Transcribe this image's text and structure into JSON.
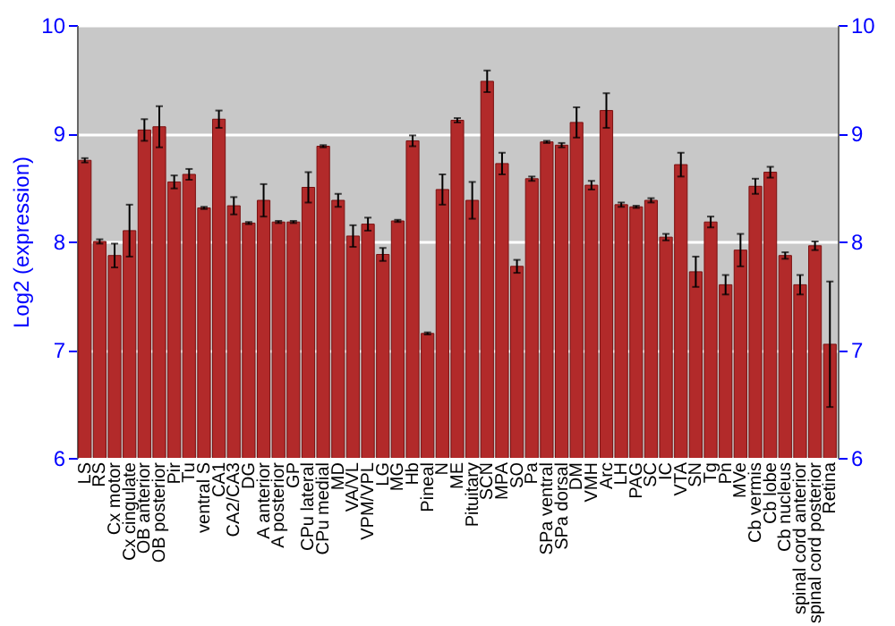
{
  "chart_data": {
    "type": "bar",
    "ylabel": "Log2 (expression)",
    "categories": [
      "LS",
      "RS",
      "Cx motor",
      "Cx cingulate",
      "OB anterior",
      "OB posterior",
      "Pir",
      "Tu",
      "ventral S",
      "CA1",
      "CA2/CA3",
      "DG",
      "A anterior",
      "A posterior",
      "GP",
      "CPu lateral",
      "CPu medial",
      "MD",
      "VA/VL",
      "VPM/VPL",
      "LG",
      "MG",
      "Hb",
      "Pineal",
      "N",
      "ME",
      "Pituitary",
      "SCN",
      "MPA",
      "SO",
      "Pa",
      "SPa ventral",
      "SPa dorsal",
      "DM",
      "VMH",
      "Arc",
      "LH",
      "PAG",
      "SC",
      "IC",
      "VTA",
      "SN",
      "Tg",
      "Pn",
      "MVe",
      "Cb vermis",
      "Cb lobe",
      "Cb nucleus",
      "spinal cord anterior",
      "spinal cord posterior",
      "Retina"
    ],
    "values": [
      8.75,
      8.0,
      7.87,
      8.1,
      9.03,
      9.06,
      8.55,
      8.62,
      8.31,
      9.13,
      8.33,
      8.17,
      8.38,
      8.18,
      8.18,
      8.5,
      8.88,
      8.38,
      8.05,
      8.16,
      7.88,
      8.19,
      8.93,
      7.15,
      8.48,
      9.12,
      8.38,
      9.48,
      8.72,
      7.77,
      8.58,
      8.92,
      8.89,
      9.1,
      8.52,
      9.21,
      8.34,
      8.32,
      8.38,
      8.04,
      8.71,
      7.72,
      8.18,
      7.6,
      7.92,
      8.51,
      8.64,
      7.87,
      7.6,
      7.96,
      7.05
    ],
    "errors": [
      0.02,
      0.02,
      0.11,
      0.24,
      0.1,
      0.19,
      0.06,
      0.05,
      0.01,
      0.08,
      0.08,
      0.01,
      0.15,
      0.01,
      0.01,
      0.14,
      0.01,
      0.06,
      0.1,
      0.06,
      0.06,
      0.01,
      0.05,
      0.01,
      0.14,
      0.02,
      0.17,
      0.1,
      0.1,
      0.06,
      0.02,
      0.01,
      0.02,
      0.14,
      0.04,
      0.16,
      0.02,
      0.01,
      0.02,
      0.03,
      0.11,
      0.14,
      0.05,
      0.09,
      0.15,
      0.07,
      0.05,
      0.03,
      0.09,
      0.04,
      0.58
    ],
    "color": "#b22a2a",
    "ylim": [
      6,
      10
    ],
    "yticks": [
      6,
      7,
      8,
      9,
      10
    ],
    "y2lim": [
      6,
      10
    ],
    "y2ticks": [
      6,
      7,
      8,
      9,
      10
    ],
    "grid": "y"
  }
}
